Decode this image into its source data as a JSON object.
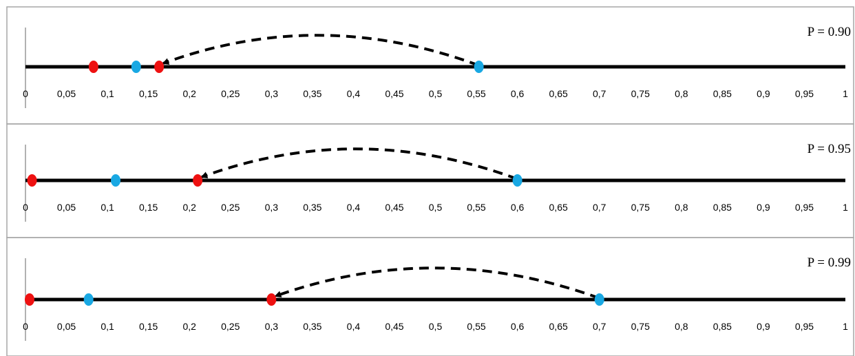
{
  "tick_labels": [
    "0",
    "0,05",
    "0,1",
    "0,15",
    "0,2",
    "0,25",
    "0,3",
    "0,35",
    "0,4",
    "0,45",
    "0,5",
    "0,55",
    "0,6",
    "0,65",
    "0,7",
    "0,75",
    "0,8",
    "0,85",
    "0,9",
    "0,95",
    "1"
  ],
  "colors": {
    "red_point": "#ee1111",
    "blue_point": "#19a8e3",
    "axis": "#000000",
    "frame": "#a6a6a6"
  },
  "chart_data": [
    {
      "type": "scatter",
      "label": "P = 0.90",
      "xlim": [
        0,
        1
      ],
      "red_points": [
        0.083,
        0.163
      ],
      "blue_points": [
        0.135,
        0.553
      ],
      "arrow": {
        "from": 0.553,
        "to": 0.163
      }
    },
    {
      "type": "scatter",
      "label": "P = 0.95",
      "xlim": [
        0,
        1
      ],
      "red_points": [
        0.008,
        0.21
      ],
      "blue_points": [
        0.11,
        0.6
      ],
      "arrow": {
        "from": 0.6,
        "to": 0.21
      }
    },
    {
      "type": "scatter",
      "label": "P = 0.99",
      "xlim": [
        0,
        1
      ],
      "red_points": [
        0.005,
        0.3
      ],
      "blue_points": [
        0.077,
        0.7
      ],
      "arrow": {
        "from": 0.7,
        "to": 0.3
      }
    }
  ]
}
